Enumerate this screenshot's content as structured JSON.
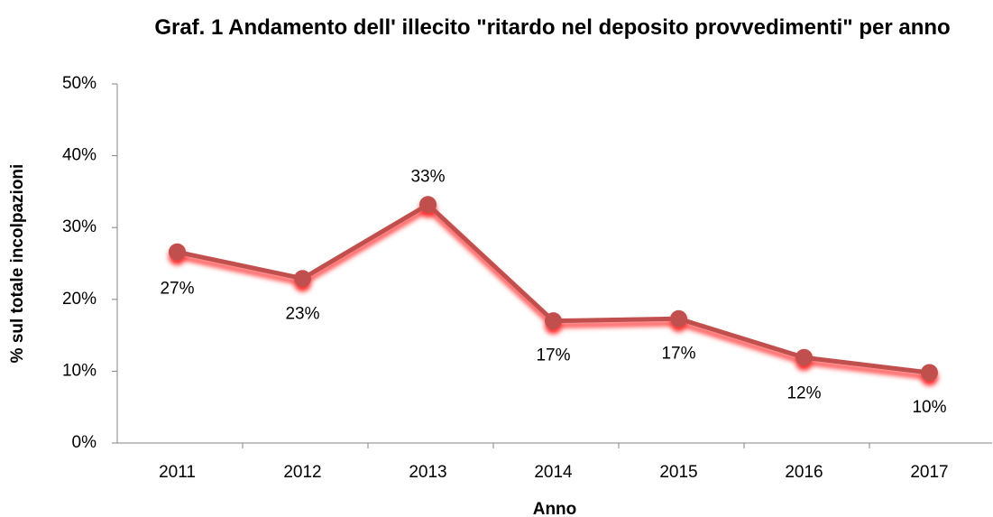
{
  "chart_data": {
    "type": "line",
    "title": "Graf. 1 Andamento dell' illecito \"ritardo nel deposito provvedimenti\" per anno",
    "x_label": "Anno",
    "y_label": "% sul totale incolpazioni",
    "categories": [
      "2011",
      "2012",
      "2013",
      "2014",
      "2015",
      "2016",
      "2017"
    ],
    "series": [
      {
        "name": "% sul totale incolpazioni",
        "color": "#c0504d",
        "values": [
          26.6,
          22.9,
          33.2,
          17.0,
          17.3,
          11.9,
          9.8
        ],
        "value_labels": [
          "27%",
          "23%",
          "33%",
          "17%",
          "17%",
          "12%",
          "10%"
        ]
      }
    ],
    "ylim": [
      0,
      50
    ],
    "yticks": [
      {
        "value": 0,
        "label": "0%"
      },
      {
        "value": 10,
        "label": "10%"
      },
      {
        "value": 20,
        "label": "20%"
      },
      {
        "value": 30,
        "label": "30%"
      },
      {
        "value": 40,
        "label": "40%"
      },
      {
        "value": 50,
        "label": "50%"
      }
    ],
    "grid": false
  }
}
